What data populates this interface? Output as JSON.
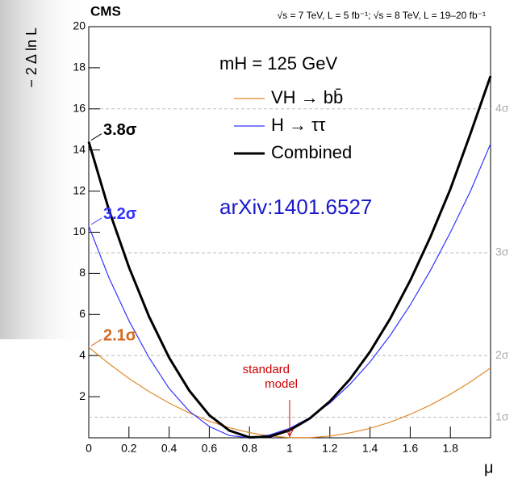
{
  "chart_data": {
    "type": "line",
    "title": "CMS",
    "subtitle": "√s = 7 TeV, L = 5 fb⁻¹; √s = 8 TeV, L = 19–20 fb⁻¹",
    "x_label": "μ",
    "y_label": "− 2 Δ ln L",
    "legend_title": "mH = 125 GeV",
    "x": [
      0,
      0.1,
      0.2,
      0.3,
      0.4,
      0.5,
      0.6,
      0.7,
      0.8,
      0.9,
      1.0,
      1.1,
      1.2,
      1.3,
      1.4,
      1.5,
      1.6,
      1.7,
      1.8,
      1.9,
      2.0
    ],
    "series": [
      {
        "name": "VH → bb̄",
        "color": "#e08a2c",
        "width": 1.2,
        "values": [
          4.4,
          3.61,
          2.89,
          2.25,
          1.69,
          1.21,
          0.81,
          0.49,
          0.25,
          0.09,
          0.01,
          0.01,
          0.08,
          0.24,
          0.46,
          0.76,
          1.14,
          1.59,
          2.12,
          2.72,
          3.4
        ]
      },
      {
        "name": "H → ττ",
        "color": "#3333ff",
        "width": 1.2,
        "values": [
          10.3,
          7.8,
          5.7,
          3.9,
          2.4,
          1.3,
          0.55,
          0.11,
          0.0,
          0.14,
          0.46,
          0.98,
          1.69,
          2.6,
          3.69,
          4.98,
          6.46,
          8.13,
          9.99,
          12.0,
          14.3
        ]
      },
      {
        "name": "Combined",
        "color": "#000000",
        "width": 3,
        "values": [
          14.4,
          11.1,
          8.3,
          5.9,
          3.9,
          2.3,
          1.1,
          0.35,
          0.02,
          0.06,
          0.37,
          0.94,
          1.77,
          2.85,
          4.19,
          5.79,
          7.65,
          9.76,
          12.1,
          14.8,
          17.6
        ]
      }
    ],
    "significance_labels": [
      {
        "text": "2.1σ",
        "color": "#d2691e"
      },
      {
        "text": "3.2σ",
        "color": "#3333ff"
      },
      {
        "text": "3.8σ",
        "color": "#000000"
      }
    ],
    "sigma_lines": [
      {
        "value": 1,
        "label": "1σ"
      },
      {
        "value": 4,
        "label": "2σ"
      },
      {
        "value": 9,
        "label": "3σ"
      },
      {
        "value": 16,
        "label": "4σ"
      }
    ],
    "standard_model": {
      "text": "standard model",
      "x": 1
    },
    "note": "arXiv:1401.6527",
    "xlim": [
      0,
      2.0
    ],
    "ylim": [
      0,
      20
    ],
    "xticks": [
      0,
      0.2,
      0.4,
      0.6,
      0.8,
      1,
      1.2,
      1.4,
      1.6,
      1.8
    ],
    "yticks": [
      2,
      4,
      6,
      8,
      10,
      12,
      14,
      16,
      18,
      20
    ]
  }
}
